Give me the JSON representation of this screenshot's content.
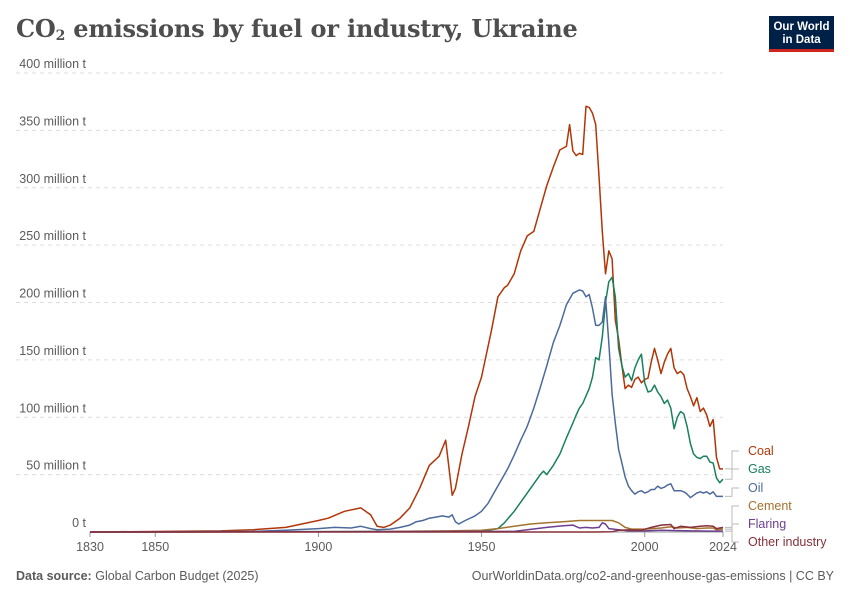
{
  "header": {
    "title_main": "CO",
    "title_sub": "2",
    "title_rest": " emissions by fuel or industry, Ukraine",
    "logo_line1": "Our World",
    "logo_line2": "in Data"
  },
  "footer": {
    "source_label": "Data source:",
    "source_value": "Global Carbon Budget (2025)",
    "url": "OurWorldinData.org/co2-and-greenhouse-gas-emissions | CC BY"
  },
  "chart_data": {
    "type": "line",
    "title": "CO₂ emissions by fuel or industry, Ukraine",
    "xlabel": "",
    "ylabel": "",
    "xlim": [
      1830,
      2024
    ],
    "ylim": [
      0,
      400
    ],
    "x_ticks": [
      "1830",
      "1850",
      "1900",
      "1950",
      "2000",
      "2024"
    ],
    "y_ticks": [
      "0 t",
      "50 million t",
      "100 million t",
      "150 million t",
      "200 million t",
      "250 million t",
      "300 million t",
      "350 million t",
      "400 million t"
    ],
    "grid": "horizontal",
    "legend": "right-end labels",
    "series": [
      {
        "name": "Coal",
        "color": "#b13507",
        "points": [
          [
            1830,
            0
          ],
          [
            1870,
            1
          ],
          [
            1880,
            2
          ],
          [
            1890,
            4
          ],
          [
            1900,
            10
          ],
          [
            1903,
            12
          ],
          [
            1908,
            18
          ],
          [
            1913,
            21
          ],
          [
            1916,
            15
          ],
          [
            1918,
            5
          ],
          [
            1920,
            4
          ],
          [
            1922,
            6
          ],
          [
            1925,
            12
          ],
          [
            1928,
            21
          ],
          [
            1931,
            38
          ],
          [
            1934,
            58
          ],
          [
            1937,
            66
          ],
          [
            1939,
            80
          ],
          [
            1941,
            32
          ],
          [
            1942,
            38
          ],
          [
            1944,
            68
          ],
          [
            1946,
            92
          ],
          [
            1948,
            118
          ],
          [
            1950,
            135
          ],
          [
            1953,
            175
          ],
          [
            1955,
            205
          ],
          [
            1957,
            213
          ],
          [
            1958,
            215
          ],
          [
            1960,
            225
          ],
          [
            1962,
            245
          ],
          [
            1964,
            258
          ],
          [
            1966,
            262
          ],
          [
            1968,
            282
          ],
          [
            1970,
            302
          ],
          [
            1972,
            318
          ],
          [
            1974,
            333
          ],
          [
            1976,
            336
          ],
          [
            1977,
            355
          ],
          [
            1978,
            332
          ],
          [
            1979,
            328
          ],
          [
            1980,
            330
          ],
          [
            1981,
            329
          ],
          [
            1982,
            371
          ],
          [
            1983,
            370
          ],
          [
            1984,
            365
          ],
          [
            1985,
            355
          ],
          [
            1986,
            310
          ],
          [
            1987,
            262
          ],
          [
            1988,
            225
          ],
          [
            1989,
            245
          ],
          [
            1990,
            238
          ],
          [
            1991,
            185
          ],
          [
            1992,
            168
          ],
          [
            1993,
            145
          ],
          [
            1994,
            125
          ],
          [
            1995,
            128
          ],
          [
            1996,
            126
          ],
          [
            1997,
            133
          ],
          [
            1998,
            135
          ],
          [
            1999,
            130
          ],
          [
            2000,
            133
          ],
          [
            2001,
            134
          ],
          [
            2002,
            148
          ],
          [
            2003,
            160
          ],
          [
            2004,
            150
          ],
          [
            2005,
            138
          ],
          [
            2006,
            148
          ],
          [
            2007,
            155
          ],
          [
            2008,
            160
          ],
          [
            2009,
            143
          ],
          [
            2010,
            138
          ],
          [
            2011,
            140
          ],
          [
            2012,
            137
          ],
          [
            2013,
            125
          ],
          [
            2014,
            118
          ],
          [
            2015,
            110
          ],
          [
            2016,
            117
          ],
          [
            2017,
            105
          ],
          [
            2018,
            108
          ],
          [
            2019,
            102
          ],
          [
            2020,
            92
          ],
          [
            2021,
            98
          ],
          [
            2022,
            65
          ],
          [
            2023,
            55
          ],
          [
            2024,
            55
          ]
        ]
      },
      {
        "name": "Gas",
        "color": "#18805d",
        "points": [
          [
            1830,
            0
          ],
          [
            1950,
            0.5
          ],
          [
            1955,
            3
          ],
          [
            1957,
            8
          ],
          [
            1960,
            18
          ],
          [
            1963,
            30
          ],
          [
            1966,
            42
          ],
          [
            1968,
            50
          ],
          [
            1969,
            53
          ],
          [
            1970,
            50
          ],
          [
            1972,
            58
          ],
          [
            1974,
            68
          ],
          [
            1976,
            82
          ],
          [
            1978,
            95
          ],
          [
            1979,
            102
          ],
          [
            1980,
            108
          ],
          [
            1981,
            112
          ],
          [
            1983,
            125
          ],
          [
            1984,
            135
          ],
          [
            1985,
            152
          ],
          [
            1986,
            150
          ],
          [
            1987,
            170
          ],
          [
            1988,
            200
          ],
          [
            1989,
            218
          ],
          [
            1990,
            222
          ],
          [
            1991,
            205
          ],
          [
            1992,
            160
          ],
          [
            1993,
            145
          ],
          [
            1994,
            135
          ],
          [
            1995,
            138
          ],
          [
            1996,
            132
          ],
          [
            1997,
            143
          ],
          [
            1998,
            150
          ],
          [
            1999,
            155
          ],
          [
            2000,
            130
          ],
          [
            2001,
            122
          ],
          [
            2002,
            123
          ],
          [
            2003,
            128
          ],
          [
            2004,
            122
          ],
          [
            2005,
            118
          ],
          [
            2006,
            112
          ],
          [
            2007,
            115
          ],
          [
            2008,
            108
          ],
          [
            2009,
            90
          ],
          [
            2010,
            100
          ],
          [
            2011,
            105
          ],
          [
            2012,
            103
          ],
          [
            2013,
            92
          ],
          [
            2014,
            77
          ],
          [
            2015,
            68
          ],
          [
            2016,
            65
          ],
          [
            2017,
            64
          ],
          [
            2018,
            66
          ],
          [
            2019,
            66
          ],
          [
            2020,
            61
          ],
          [
            2021,
            60
          ],
          [
            2022,
            47
          ],
          [
            2023,
            43
          ],
          [
            2024,
            46
          ]
        ]
      },
      {
        "name": "Oil",
        "color": "#4c6a9c",
        "points": [
          [
            1830,
            0
          ],
          [
            1880,
            0.5
          ],
          [
            1890,
            1.5
          ],
          [
            1900,
            3
          ],
          [
            1905,
            4
          ],
          [
            1910,
            3.5
          ],
          [
            1913,
            5
          ],
          [
            1916,
            3
          ],
          [
            1918,
            2
          ],
          [
            1922,
            2.5
          ],
          [
            1925,
            4
          ],
          [
            1928,
            6
          ],
          [
            1930,
            9
          ],
          [
            1932,
            10
          ],
          [
            1934,
            12
          ],
          [
            1936,
            13
          ],
          [
            1938,
            14
          ],
          [
            1940,
            13
          ],
          [
            1941,
            15
          ],
          [
            1942,
            9
          ],
          [
            1943,
            7
          ],
          [
            1945,
            10
          ],
          [
            1948,
            14
          ],
          [
            1950,
            18
          ],
          [
            1952,
            25
          ],
          [
            1954,
            35
          ],
          [
            1956,
            45
          ],
          [
            1958,
            55
          ],
          [
            1960,
            67
          ],
          [
            1962,
            80
          ],
          [
            1964,
            92
          ],
          [
            1966,
            108
          ],
          [
            1968,
            126
          ],
          [
            1970,
            145
          ],
          [
            1972,
            165
          ],
          [
            1974,
            180
          ],
          [
            1976,
            198
          ],
          [
            1978,
            208
          ],
          [
            1980,
            211
          ],
          [
            1981,
            210
          ],
          [
            1982,
            205
          ],
          [
            1983,
            207
          ],
          [
            1984,
            195
          ],
          [
            1985,
            180
          ],
          [
            1986,
            180
          ],
          [
            1987,
            183
          ],
          [
            1988,
            205
          ],
          [
            1989,
            165
          ],
          [
            1990,
            120
          ],
          [
            1991,
            95
          ],
          [
            1992,
            72
          ],
          [
            1993,
            60
          ],
          [
            1994,
            48
          ],
          [
            1995,
            40
          ],
          [
            1996,
            36
          ],
          [
            1997,
            33
          ],
          [
            1998,
            35
          ],
          [
            1999,
            36
          ],
          [
            2000,
            34
          ],
          [
            2001,
            35
          ],
          [
            2002,
            37
          ],
          [
            2003,
            37
          ],
          [
            2004,
            40
          ],
          [
            2005,
            38
          ],
          [
            2006,
            39
          ],
          [
            2007,
            41
          ],
          [
            2008,
            42
          ],
          [
            2009,
            36
          ],
          [
            2010,
            36
          ],
          [
            2011,
            36
          ],
          [
            2012,
            35
          ],
          [
            2013,
            33
          ],
          [
            2014,
            30
          ],
          [
            2015,
            32
          ],
          [
            2016,
            34
          ],
          [
            2017,
            35
          ],
          [
            2018,
            34
          ],
          [
            2019,
            35
          ],
          [
            2020,
            33
          ],
          [
            2021,
            35
          ],
          [
            2022,
            31
          ],
          [
            2023,
            31
          ],
          [
            2024,
            31
          ]
        ]
      },
      {
        "name": "Cement",
        "color": "#a2722e",
        "points": [
          [
            1830,
            0
          ],
          [
            1900,
            0.2
          ],
          [
            1920,
            0.4
          ],
          [
            1930,
            0.8
          ],
          [
            1940,
            1
          ],
          [
            1950,
            1.5
          ],
          [
            1955,
            3
          ],
          [
            1960,
            5
          ],
          [
            1965,
            7
          ],
          [
            1970,
            8
          ],
          [
            1975,
            9
          ],
          [
            1980,
            10
          ],
          [
            1985,
            10
          ],
          [
            1988,
            10
          ],
          [
            1990,
            10
          ],
          [
            1992,
            8
          ],
          [
            1994,
            4
          ],
          [
            1996,
            2.5
          ],
          [
            2000,
            2.5
          ],
          [
            2005,
            3.5
          ],
          [
            2008,
            4.5
          ],
          [
            2010,
            3.5
          ],
          [
            2013,
            4
          ],
          [
            2016,
            3
          ],
          [
            2019,
            3.5
          ],
          [
            2021,
            3.5
          ],
          [
            2022,
            2
          ],
          [
            2024,
            2.5
          ]
        ]
      },
      {
        "name": "Flaring",
        "color": "#6d3e91",
        "points": [
          [
            1830,
            0
          ],
          [
            1960,
            0.5
          ],
          [
            1970,
            4
          ],
          [
            1975,
            5.5
          ],
          [
            1978,
            6
          ],
          [
            1980,
            3.5
          ],
          [
            1982,
            4
          ],
          [
            1984,
            3.5
          ],
          [
            1986,
            4
          ],
          [
            1987,
            8
          ],
          [
            1988,
            7
          ],
          [
            1989,
            3
          ],
          [
            1992,
            2
          ],
          [
            1995,
            1
          ],
          [
            2000,
            1
          ],
          [
            2005,
            1.5
          ],
          [
            2010,
            1.2
          ],
          [
            2015,
            1
          ],
          [
            2020,
            0.8
          ],
          [
            2024,
            0.8
          ]
        ]
      },
      {
        "name": "Other industry",
        "color": "#883039",
        "points": [
          [
            1830,
            0
          ],
          [
            1985,
            0
          ],
          [
            1990,
            0.3
          ],
          [
            1992,
            1.5
          ],
          [
            1995,
            1.8
          ],
          [
            1999,
            1.5
          ],
          [
            2002,
            4
          ],
          [
            2005,
            6
          ],
          [
            2008,
            6.5
          ],
          [
            2009,
            3
          ],
          [
            2011,
            5
          ],
          [
            2014,
            4
          ],
          [
            2017,
            5
          ],
          [
            2019,
            5.5
          ],
          [
            2021,
            5
          ],
          [
            2022,
            3
          ],
          [
            2024,
            4
          ]
        ]
      }
    ]
  }
}
